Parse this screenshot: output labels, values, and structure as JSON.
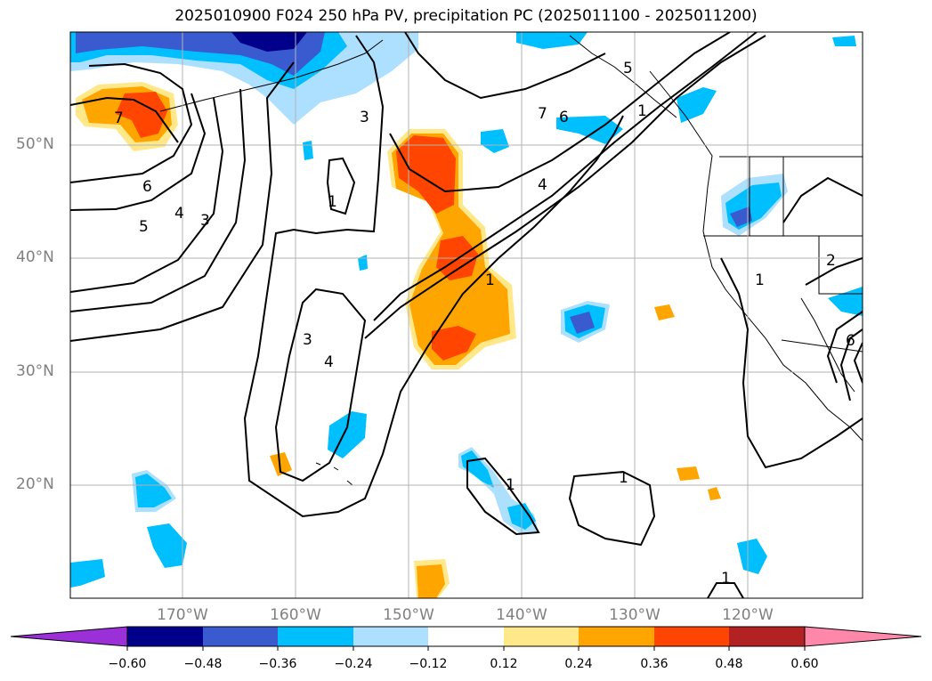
{
  "title": "2025010900 F024 250 hPa PV, precipitation PC (2025011100 - 2025011200)",
  "lat_labels": [
    "50°N",
    "40°N",
    "30°N",
    "20°N"
  ],
  "lon_labels": [
    "170°W",
    "160°W",
    "150°W",
    "140°W",
    "130°W",
    "120°W"
  ],
  "colorbar": {
    "ticks": [
      "−0.60",
      "−0.48",
      "−0.36",
      "−0.24",
      "−0.12",
      "0.12",
      "0.24",
      "0.36",
      "0.48",
      "0.60"
    ],
    "colors": [
      "#9b30d9",
      "#00008b",
      "#3a5bcf",
      "#00bfff",
      "#addfff",
      "#ffffff",
      "#ffe88a",
      "#ffa500",
      "#ff4500",
      "#b22222",
      "#ff88aa"
    ]
  },
  "contour_labels": [
    "7",
    "6",
    "5",
    "4",
    "3",
    "3",
    "1",
    "1",
    "3",
    "4",
    "7",
    "6",
    "4",
    "1",
    "5",
    "1",
    "1",
    "1",
    "1",
    "2",
    "6"
  ],
  "colors": {
    "grid": "#b3b3b3",
    "contour": "#000000",
    "coast": "#000000"
  }
}
